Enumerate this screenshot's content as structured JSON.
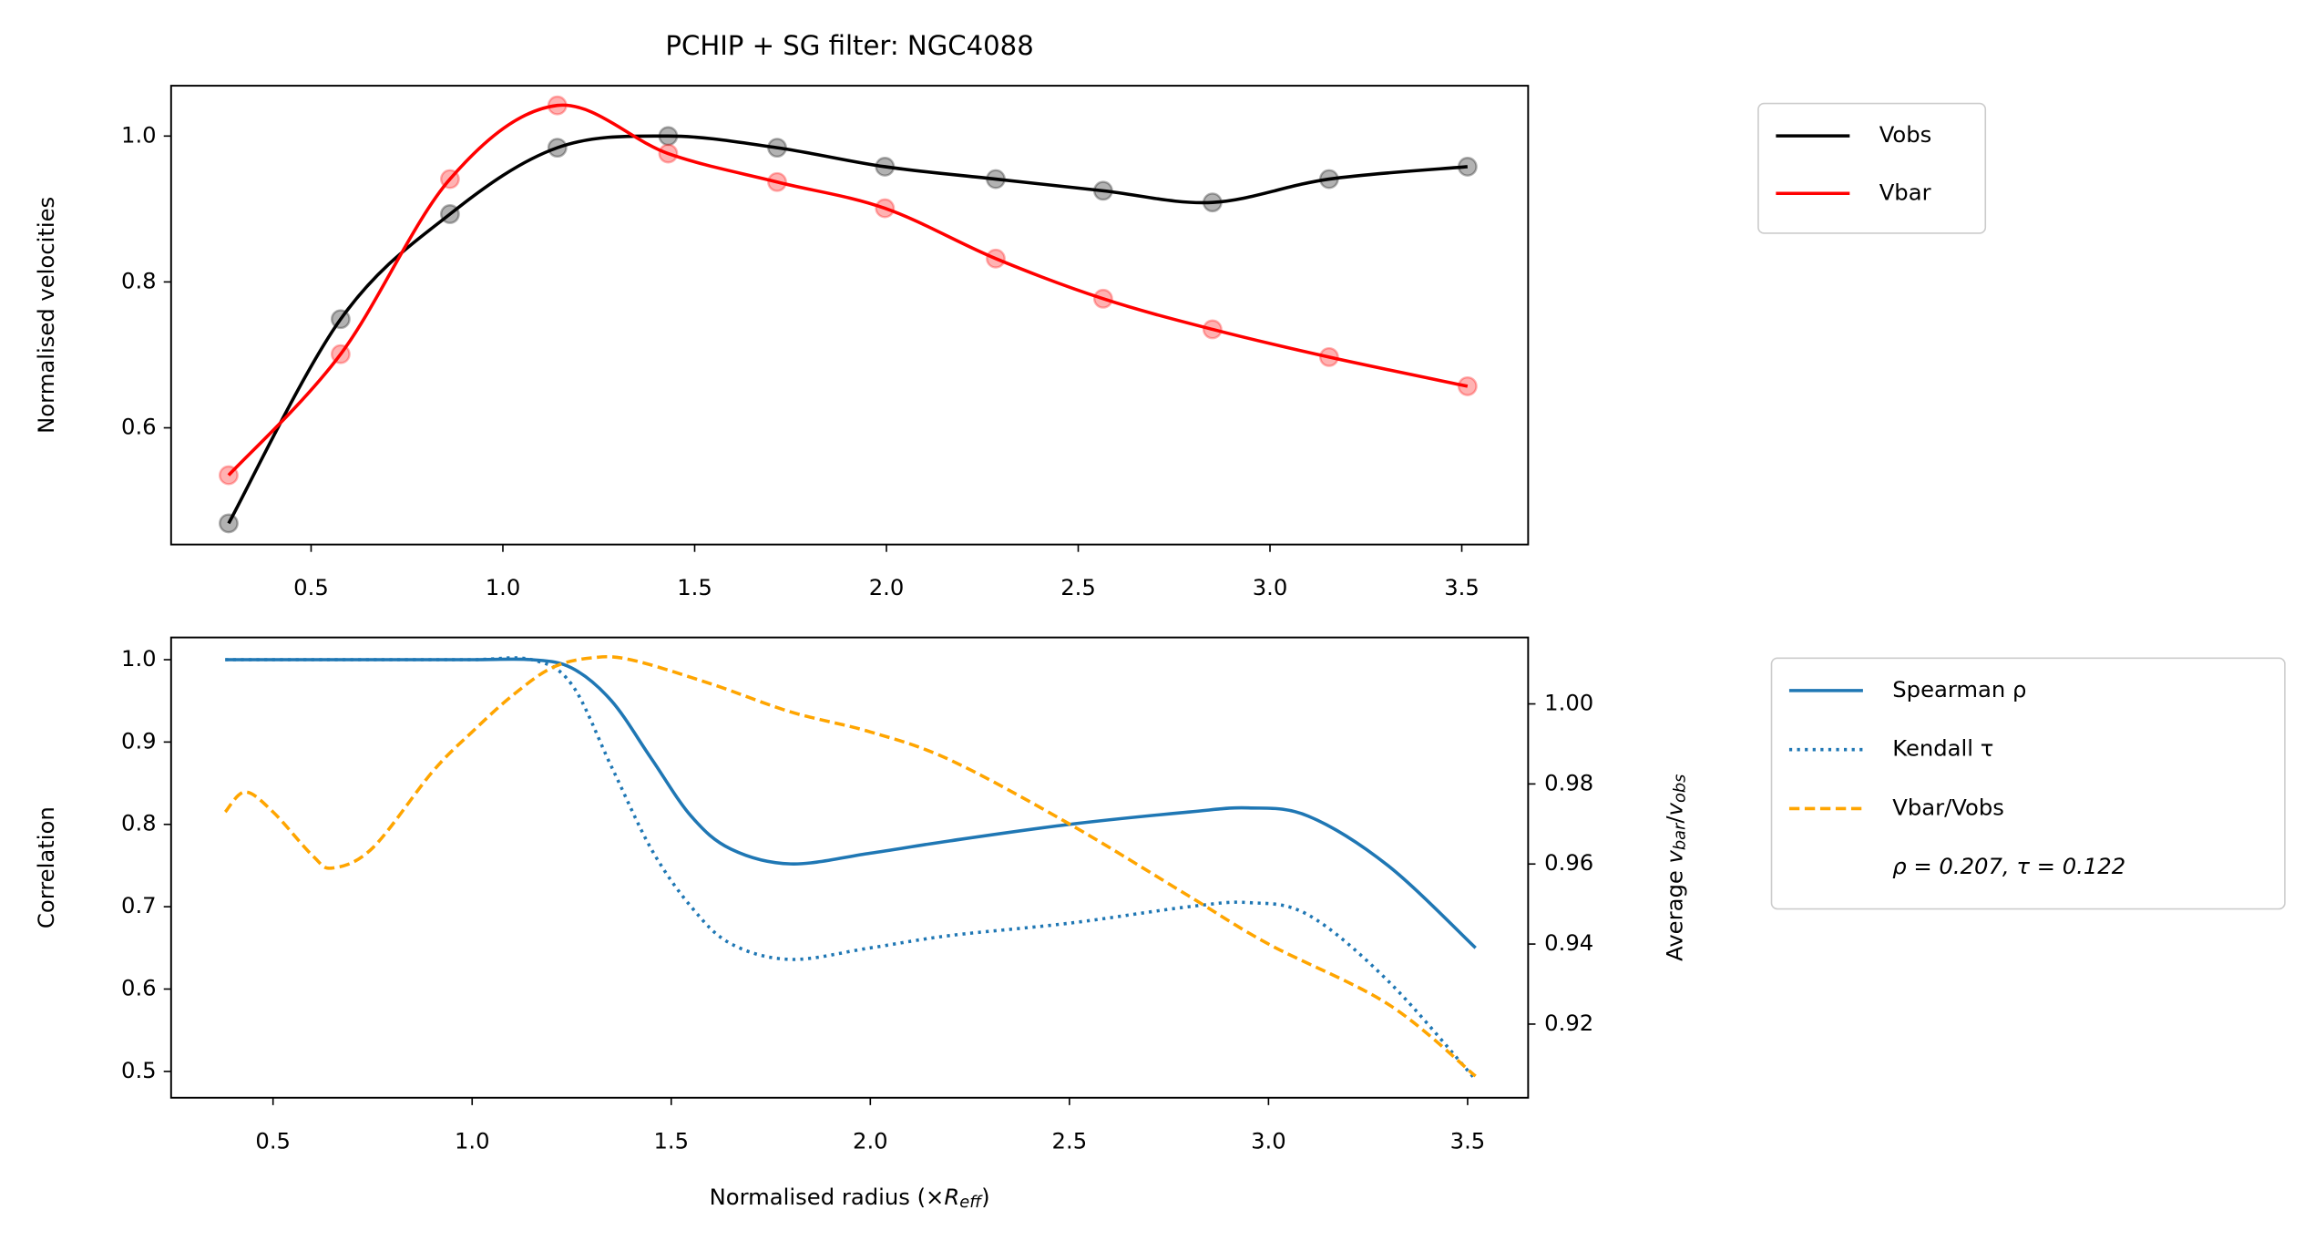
{
  "chart_data": [
    {
      "type": "line",
      "title": "PCHIP + SG filter: NGC4088",
      "ylabel": "Normalised velocities",
      "markers": true,
      "xlim": [
        0.135,
        3.673
      ],
      "ylim": [
        0.44,
        1.069
      ],
      "xticks": [
        0.5,
        {
          "value": 1,
          "label": "1.0"
        },
        1.5,
        {
          "value": 2,
          "label": "2.0"
        },
        2.5,
        {
          "value": 3,
          "label": "3.0"
        },
        3.5
      ],
      "yticks": [
        0.6,
        0.8,
        {
          "value": 1,
          "label": "1.0"
        }
      ],
      "x": [
        0.285,
        0.577,
        0.862,
        1.142,
        1.431,
        1.715,
        1.996,
        2.285,
        2.565,
        2.85,
        3.154,
        3.515
      ],
      "series": [
        {
          "name": "Vobs",
          "color": "#000000",
          "values": [
            0.469,
            0.749,
            0.893,
            0.984,
            1.0,
            0.984,
            0.958,
            0.941,
            0.925,
            0.909,
            0.941,
            0.958
          ]
        },
        {
          "name": "Vbar",
          "color": "#ff0000",
          "values": [
            0.535,
            0.701,
            0.941,
            1.042,
            0.976,
            0.937,
            0.901,
            0.832,
            0.777,
            0.735,
            0.697,
            0.657
          ]
        }
      ],
      "legend": "outside upper right"
    },
    {
      "type": "line",
      "ylabel": "Correlation",
      "xlabel": [
        "Normalised radius (×",
        "R",
        "eff",
        ")"
      ],
      "y2label": [
        "Average ",
        "v",
        "bar",
        "/",
        "v",
        "obs"
      ],
      "ycolor": "#1f77b4",
      "y2color": "#ffa500",
      "xlim": [
        0.244,
        3.652
      ],
      "ylim": [
        0.468,
        1.027
      ],
      "y2lim": [
        0.9016,
        1.0166
      ],
      "xticks": [
        0.5,
        {
          "value": 1,
          "label": "1.0"
        },
        1.5,
        {
          "value": 2,
          "label": "2.0"
        },
        2.5,
        {
          "value": 3,
          "label": "3.0"
        },
        3.5
      ],
      "yticks": [
        0.5,
        0.6,
        0.7,
        0.8,
        0.9,
        {
          "value": 1,
          "label": "1.0"
        }
      ],
      "y2ticks": [
        0.92,
        0.94,
        0.96,
        0.98,
        {
          "value": 1,
          "label": "1.00"
        }
      ],
      "series": [
        {
          "name": "Spearman ρ",
          "color": "#1f77b4",
          "style": "solid",
          "x": [
            0.38,
            0.6,
            0.8,
            1.0,
            1.15,
            1.25,
            1.35,
            1.45,
            1.55,
            1.65,
            1.8,
            2.0,
            2.2,
            2.5,
            2.8,
            2.95,
            3.1,
            3.3,
            3.52
          ],
          "values": [
            1,
            1,
            1,
            1,
            1,
            0.99,
            0.95,
            0.88,
            0.81,
            0.77,
            0.752,
            0.765,
            0.78,
            0.8,
            0.815,
            0.82,
            0.81,
            0.75,
            0.65
          ]
        },
        {
          "name": "Kendall τ",
          "color": "#1f77b4",
          "style": "dotted",
          "x": [
            0.38,
            0.6,
            0.8,
            1.0,
            1.15,
            1.25,
            1.35,
            1.45,
            1.55,
            1.65,
            1.8,
            2.0,
            2.2,
            2.5,
            2.8,
            2.95,
            3.1,
            3.3,
            3.52
          ],
          "values": [
            1,
            1,
            1,
            1,
            1,
            0.97,
            0.87,
            0.77,
            0.7,
            0.655,
            0.636,
            0.65,
            0.665,
            0.68,
            0.7,
            0.705,
            0.69,
            0.61,
            0.49
          ]
        },
        {
          "name": "Vbar/Vobs",
          "color": "#ffa500",
          "style": "dashed",
          "axis": "y2",
          "x": [
            0.38,
            0.43,
            0.5,
            0.6,
            0.65,
            0.75,
            0.9,
            1.0,
            1.1,
            1.2,
            1.3,
            1.4,
            1.6,
            1.8,
            2.0,
            2.2,
            2.5,
            2.8,
            3.0,
            3.3,
            3.52
          ],
          "values": [
            0.973,
            0.978,
            0.973,
            0.962,
            0.959,
            0.964,
            0.983,
            0.993,
            1.002,
            1.009,
            1.0115,
            1.011,
            1.005,
            0.998,
            0.993,
            0.986,
            0.97,
            0.952,
            0.94,
            0.925,
            0.907
          ]
        }
      ],
      "legend": "outside upper right",
      "legend_note": "ρ = 0.207, τ = 0.122"
    }
  ]
}
